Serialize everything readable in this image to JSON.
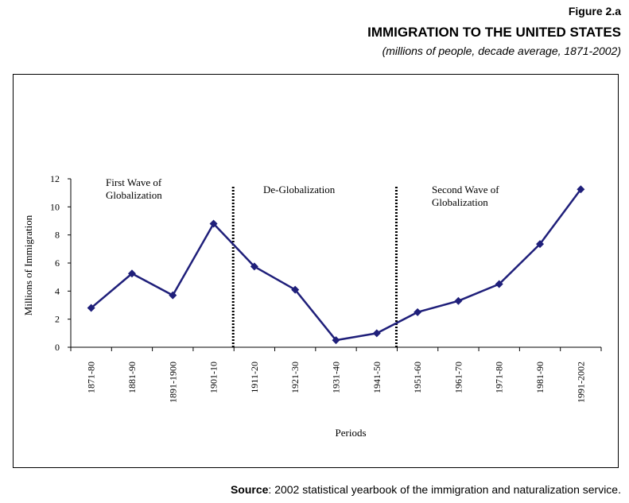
{
  "figure": {
    "label": "Figure 2.a",
    "title": "IMMIGRATION TO THE UNITED STATES",
    "subtitle": "(millions of people, decade average, 1871-2002)"
  },
  "source": {
    "label": "Source",
    "text": ": 2002 statistical yearbook of the immigration and naturalization service."
  },
  "chart_data": {
    "type": "line",
    "xlabel": "Periods",
    "ylabel": "Millions of Immigration",
    "ylim": [
      0,
      12
    ],
    "yticks": [
      0,
      2,
      4,
      6,
      8,
      10,
      12
    ],
    "grid": false,
    "categories": [
      "1871-80",
      "1881-90",
      "1891-1900",
      "1901-10",
      "1911-20",
      "1921-30",
      "1931-40",
      "1941-50",
      "1951-60",
      "1961-70",
      "1971-80",
      "1981-90",
      "1991-2002"
    ],
    "series": [
      {
        "values": [
          2.8,
          5.25,
          3.7,
          8.8,
          5.75,
          4.1,
          0.5,
          1.0,
          2.5,
          3.3,
          4.5,
          7.35,
          11.25
        ],
        "color": "#1f1f7a",
        "marker": "diamond"
      }
    ],
    "dividers": [
      {
        "after_category": "1901-10"
      },
      {
        "after_category": "1941-50"
      }
    ],
    "annotations": [
      {
        "lines": [
          "First Wave of",
          "Globalization"
        ],
        "period_span": "1871-80 to 1901-10"
      },
      {
        "lines": [
          "De-Globalization"
        ],
        "period_span": "1911-20 to 1941-50"
      },
      {
        "lines": [
          "Second Wave of",
          "Globalization"
        ],
        "period_span": "1951-60 to 1991-2002"
      }
    ]
  }
}
